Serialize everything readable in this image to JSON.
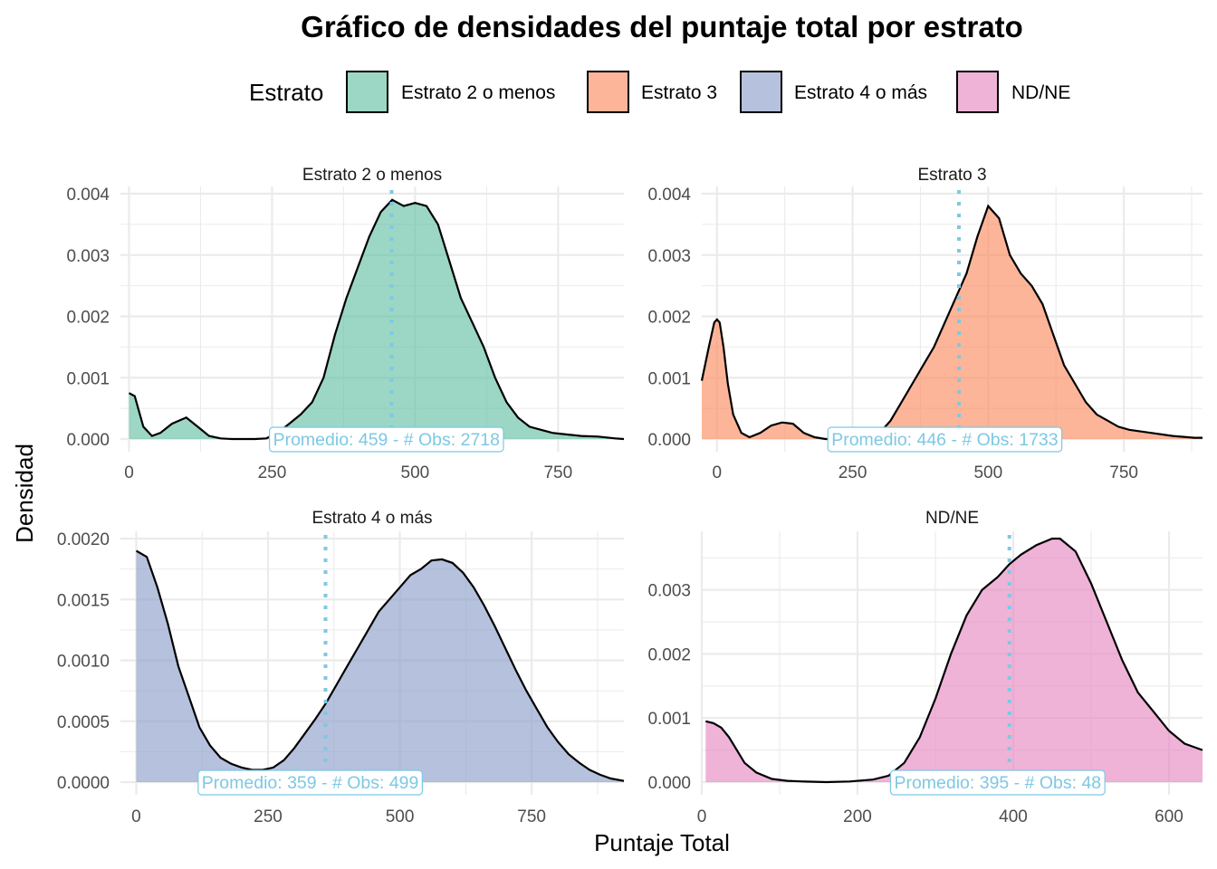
{
  "chart_data": {
    "type": "area",
    "title": "Gráfico de densidades del puntaje total por estrato",
    "xlabel": "Puntaje Total",
    "ylabel": "Densidad",
    "legend": {
      "title": "Estrato",
      "position": "top",
      "entries": [
        {
          "name": "Estrato 2 o menos",
          "color": "#66c2a5"
        },
        {
          "name": "Estrato 3",
          "color": "#fc8d62"
        },
        {
          "name": "Estrato 4 o más",
          "color": "#8da0cb"
        },
        {
          "name": "ND/NE",
          "color": "#e78ac3"
        }
      ]
    },
    "mean_line_color": "#7ec8e3",
    "grid": true,
    "panels": [
      {
        "strip": "Estrato 2 o menos",
        "color": "#66c2a5",
        "xlim": [
          -15,
          865
        ],
        "ylim": [
          0,
          0.004
        ],
        "x_ticks": [
          0,
          250,
          500,
          750
        ],
        "x_tick_labels": [
          "0",
          "250",
          "500",
          "750"
        ],
        "y_ticks": [
          0,
          0.001,
          0.002,
          0.003,
          0.004
        ],
        "y_tick_labels": [
          "0.000",
          "0.001",
          "0.002",
          "0.003",
          "0.004"
        ],
        "mean": 459,
        "label": "Promedio: 459  - # Obs: 2718",
        "label_x": 450,
        "x": [
          0,
          10,
          25,
          40,
          55,
          75,
          100,
          120,
          140,
          160,
          180,
          200,
          220,
          240,
          260,
          280,
          300,
          320,
          340,
          360,
          380,
          400,
          420,
          440,
          460,
          480,
          500,
          520,
          540,
          560,
          580,
          600,
          620,
          640,
          660,
          680,
          700,
          720,
          740,
          760,
          790,
          820,
          850,
          865
        ],
        "y": [
          0.00075,
          0.0007,
          0.0002,
          5e-05,
          0.0001,
          0.00025,
          0.00035,
          0.0002,
          5e-05,
          1e-05,
          0.0,
          0.0,
          0.0,
          1e-05,
          0.0001,
          0.00025,
          0.0004,
          0.0006,
          0.001,
          0.0017,
          0.0023,
          0.0028,
          0.0033,
          0.0037,
          0.0039,
          0.0038,
          0.00385,
          0.0038,
          0.0035,
          0.0029,
          0.0023,
          0.0019,
          0.0015,
          0.001,
          0.0006,
          0.00035,
          0.0002,
          0.00015,
          0.0001,
          8e-05,
          5e-05,
          4e-05,
          1e-05,
          0.0
        ]
      },
      {
        "strip": "Estrato 3",
        "color": "#fc8d62",
        "xlim": [
          -28,
          895
        ],
        "ylim": [
          0,
          0.004
        ],
        "x_ticks": [
          0,
          250,
          500,
          750
        ],
        "x_tick_labels": [
          "0",
          "250",
          "500",
          "750"
        ],
        "y_ticks": [
          0,
          0.001,
          0.002,
          0.003,
          0.004
        ],
        "y_tick_labels": [
          "0.000",
          "0.001",
          "0.002",
          "0.003",
          "0.004"
        ],
        "mean": 446,
        "label": "Promedio: 446  - # Obs: 1733",
        "label_x": 420,
        "x": [
          -28,
          -15,
          -5,
          0,
          5,
          12,
          20,
          30,
          45,
          60,
          80,
          100,
          120,
          140,
          160,
          180,
          200,
          240,
          280,
          300,
          320,
          340,
          360,
          380,
          400,
          420,
          440,
          460,
          480,
          500,
          520,
          540,
          560,
          580,
          600,
          620,
          640,
          660,
          680,
          700,
          720,
          740,
          760,
          800,
          840,
          880,
          895
        ],
        "y": [
          0.00095,
          0.0015,
          0.0019,
          0.00195,
          0.0019,
          0.0015,
          0.0009,
          0.0004,
          0.0001,
          3e-05,
          0.0001,
          0.00022,
          0.00027,
          0.00025,
          0.0001,
          3e-05,
          0.0,
          0.0,
          0.0,
          0.0001,
          0.0003,
          0.0006,
          0.0009,
          0.0012,
          0.0015,
          0.0019,
          0.0023,
          0.0027,
          0.0033,
          0.0038,
          0.0036,
          0.003,
          0.0027,
          0.0025,
          0.0022,
          0.0017,
          0.0012,
          0.0009,
          0.0006,
          0.0004,
          0.0003,
          0.0002,
          0.00015,
          0.0001,
          5e-05,
          2e-05,
          2e-05
        ]
      },
      {
        "strip": "Estrato 4 o más",
        "color": "#8da0cb",
        "xlim": [
          -30,
          925
        ],
        "ylim": [
          0,
          0.002
        ],
        "x_ticks": [
          0,
          250,
          500,
          750
        ],
        "x_tick_labels": [
          "0",
          "250",
          "500",
          "750"
        ],
        "y_ticks": [
          0,
          0.0005,
          0.001,
          0.0015,
          0.002
        ],
        "y_tick_labels": [
          "0.0000",
          "0.0005",
          "0.0010",
          "0.0015",
          "0.0020"
        ],
        "mean": 359,
        "label": "Promedio: 359  - # Obs: 499",
        "label_x": 330,
        "x": [
          0,
          20,
          40,
          60,
          80,
          100,
          120,
          140,
          160,
          180,
          200,
          220,
          240,
          260,
          280,
          300,
          320,
          340,
          360,
          380,
          400,
          420,
          440,
          460,
          480,
          500,
          520,
          540,
          560,
          580,
          600,
          620,
          640,
          660,
          680,
          700,
          720,
          740,
          760,
          780,
          800,
          820,
          840,
          860,
          880,
          900,
          925
        ],
        "y": [
          0.0019,
          0.00185,
          0.0016,
          0.0013,
          0.00095,
          0.0007,
          0.00045,
          0.0003,
          0.0002,
          0.00015,
          0.00012,
          0.0001,
          0.0001,
          0.00012,
          0.00018,
          0.00028,
          0.0004,
          0.00052,
          0.00065,
          0.0008,
          0.00095,
          0.0011,
          0.00125,
          0.0014,
          0.0015,
          0.0016,
          0.0017,
          0.00175,
          0.00182,
          0.00183,
          0.0018,
          0.00172,
          0.0016,
          0.00145,
          0.00128,
          0.0011,
          0.00092,
          0.00075,
          0.0006,
          0.00045,
          0.00033,
          0.00023,
          0.00016,
          0.0001,
          6e-05,
          3e-05,
          1e-05
        ]
      },
      {
        "strip": "ND/NE",
        "color": "#e78ac3",
        "xlim": [
          0,
          643
        ],
        "ylim": [
          0,
          0.0038
        ],
        "x_ticks": [
          0,
          200,
          400,
          600
        ],
        "x_tick_labels": [
          "0",
          "200",
          "400",
          "600"
        ],
        "y_ticks": [
          0,
          0.001,
          0.002,
          0.003
        ],
        "y_tick_labels": [
          "0.000",
          "0.001",
          "0.002",
          "0.003"
        ],
        "mean": 395,
        "label": "Promedio: 395  - # Obs: 48",
        "label_x": 380,
        "x": [
          5,
          15,
          25,
          35,
          45,
          55,
          70,
          90,
          110,
          130,
          160,
          190,
          220,
          240,
          260,
          280,
          300,
          320,
          340,
          360,
          380,
          395,
          410,
          430,
          450,
          460,
          480,
          500,
          520,
          540,
          560,
          580,
          600,
          620,
          643
        ],
        "y": [
          0.00095,
          0.00092,
          0.00085,
          0.0007,
          0.0005,
          0.0003,
          0.00015,
          5e-05,
          2e-05,
          1e-05,
          0.0,
          1e-05,
          4e-05,
          0.0001,
          0.0003,
          0.0007,
          0.0013,
          0.002,
          0.0026,
          0.003,
          0.0032,
          0.0034,
          0.00355,
          0.0037,
          0.0038,
          0.0038,
          0.0036,
          0.0031,
          0.0025,
          0.0019,
          0.0014,
          0.0011,
          0.0008,
          0.0006,
          0.0005
        ]
      }
    ]
  }
}
